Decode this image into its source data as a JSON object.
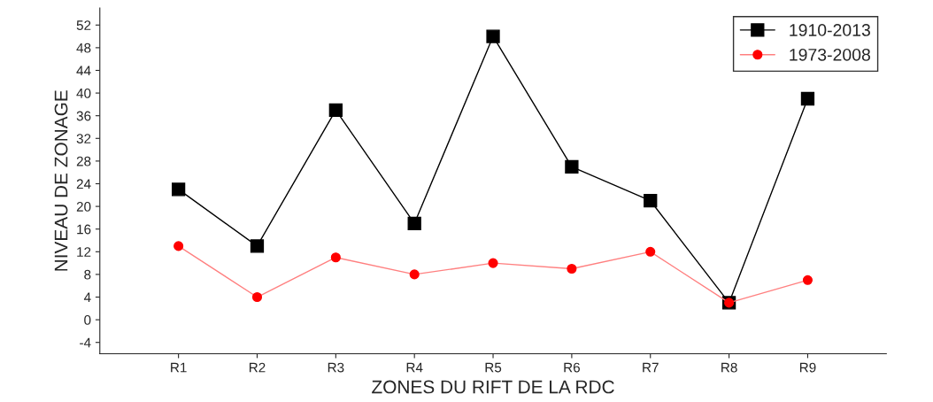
{
  "chart_data": {
    "type": "line",
    "xlabel": "ZONES DU RIFT DE LA RDC",
    "ylabel": "NIVEAU DE ZONAGE",
    "categories": [
      "R1",
      "R2",
      "R3",
      "R4",
      "R5",
      "R6",
      "R7",
      "R8",
      "R9"
    ],
    "series": [
      {
        "name": "1910-2013",
        "color": "#000000",
        "marker": "square",
        "values": [
          23,
          13,
          37,
          17,
          50,
          27,
          21,
          3,
          39
        ]
      },
      {
        "name": "1973-2008",
        "color": "#ff0000",
        "marker": "circle",
        "values": [
          13,
          4,
          11,
          8,
          10,
          9,
          12,
          3,
          7
        ]
      }
    ],
    "ylim": [
      -6,
      55
    ],
    "yticks": [
      -4,
      0,
      4,
      8,
      12,
      16,
      20,
      24,
      28,
      32,
      36,
      40,
      44,
      48,
      52
    ],
    "grid": false,
    "legend": "top right",
    "line_style": "solid"
  }
}
